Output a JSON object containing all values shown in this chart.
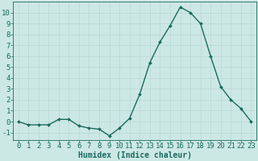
{
  "x": [
    0,
    1,
    2,
    3,
    4,
    5,
    6,
    7,
    8,
    9,
    10,
    11,
    12,
    13,
    14,
    15,
    16,
    17,
    18,
    19,
    20,
    21,
    22,
    23
  ],
  "y": [
    0.0,
    -0.3,
    -0.3,
    -0.3,
    0.2,
    0.2,
    -0.4,
    -0.6,
    -0.7,
    -1.3,
    -0.6,
    0.3,
    2.5,
    5.4,
    7.3,
    8.8,
    10.5,
    10.0,
    9.0,
    6.0,
    3.2,
    2.0,
    1.2,
    0.0
  ],
  "line_color": "#1a6b5e",
  "marker": "D",
  "marker_size": 2.0,
  "linewidth": 1.0,
  "xlabel": "Humidex (Indice chaleur)",
  "xlim": [
    -0.5,
    23.5
  ],
  "ylim": [
    -1.7,
    11.0
  ],
  "yticks": [
    -1,
    0,
    1,
    2,
    3,
    4,
    5,
    6,
    7,
    8,
    9,
    10
  ],
  "xticks": [
    0,
    1,
    2,
    3,
    4,
    5,
    6,
    7,
    8,
    9,
    10,
    11,
    12,
    13,
    14,
    15,
    16,
    17,
    18,
    19,
    20,
    21,
    22,
    23
  ],
  "bg_color": "#cce8e4",
  "grid_color": "#b8d8d4",
  "font_size_xlabel": 7,
  "font_size_ticks": 6.5
}
